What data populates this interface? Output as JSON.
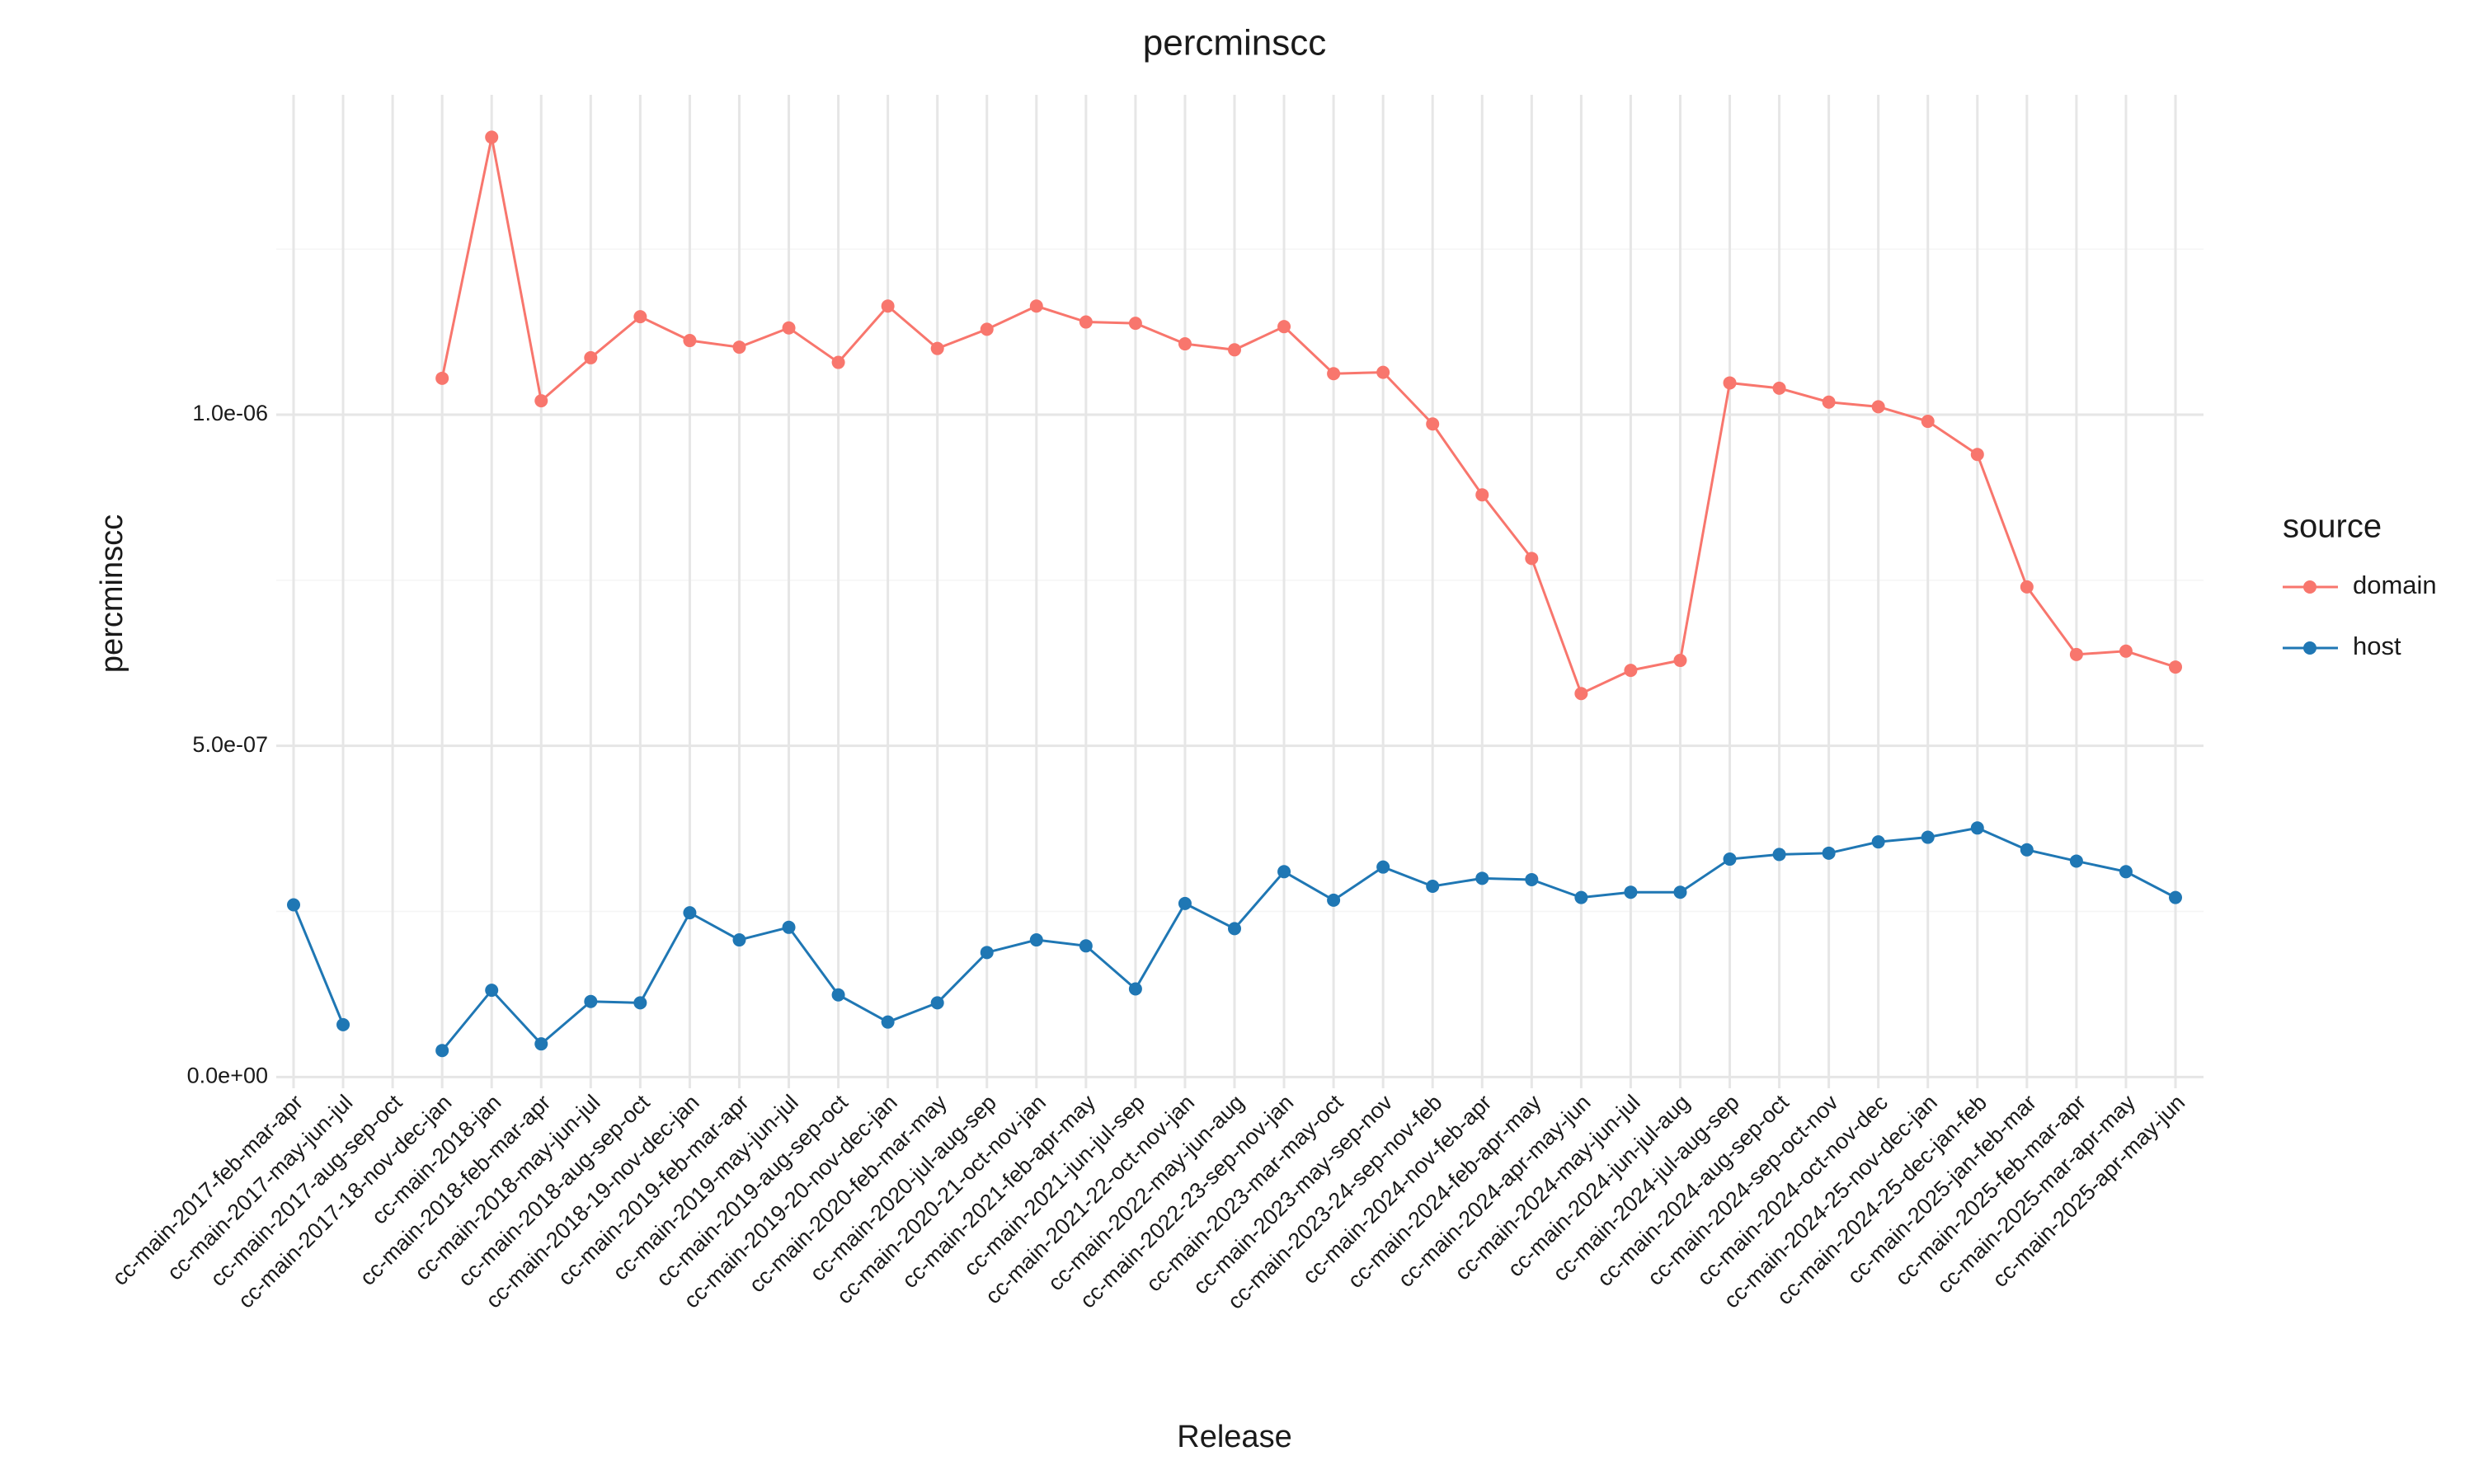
{
  "chart_data": {
    "type": "line",
    "title": "percminscc",
    "x_label": "Release",
    "y_label": "percminscc",
    "categories": [
      "cc-main-2017-feb-mar-apr",
      "cc-main-2017-may-jun-jul",
      "cc-main-2017-aug-sep-oct",
      "cc-main-2017-18-nov-dec-jan",
      "cc-main-2018-jan",
      "cc-main-2018-feb-mar-apr",
      "cc-main-2018-may-jun-jul",
      "cc-main-2018-aug-sep-oct",
      "cc-main-2018-19-nov-dec-jan",
      "cc-main-2019-feb-mar-apr",
      "cc-main-2019-may-jun-jul",
      "cc-main-2019-aug-sep-oct",
      "cc-main-2019-20-nov-dec-jan",
      "cc-main-2020-feb-mar-may",
      "cc-main-2020-jul-aug-sep",
      "cc-main-2020-21-oct-nov-jan",
      "cc-main-2021-feb-apr-may",
      "cc-main-2021-jun-jul-sep",
      "cc-main-2021-22-oct-nov-jan",
      "cc-main-2022-may-jun-aug",
      "cc-main-2022-23-sep-nov-jan",
      "cc-main-2023-mar-may-oct",
      "cc-main-2023-may-sep-nov",
      "cc-main-2023-24-sep-nov-feb",
      "cc-main-2024-nov-feb-apr",
      "cc-main-2024-feb-apr-may",
      "cc-main-2024-apr-may-jun",
      "cc-main-2024-may-jun-jul",
      "cc-main-2024-jun-jul-aug",
      "cc-main-2024-jul-aug-sep",
      "cc-main-2024-aug-sep-oct",
      "cc-main-2024-sep-oct-nov",
      "cc-main-2024-oct-nov-dec",
      "cc-main-2024-25-nov-dec-jan",
      "cc-main-2024-25-dec-jan-feb",
      "cc-main-2025-jan-feb-mar",
      "cc-main-2025-feb-mar-apr",
      "cc-main-2025-mar-apr-may",
      "cc-main-2025-apr-may-jun"
    ],
    "legend_title": "source",
    "grid": true,
    "ylim": [
      -1.7e-08,
      1.483e-06
    ],
    "yticks": [
      {
        "value": 0,
        "label": "0.0e+00"
      },
      {
        "value": 5e-07,
        "label": "5.0e-07"
      },
      {
        "value": 1e-06,
        "label": "1.0e-06"
      }
    ],
    "minor_yticks": [
      2.5e-07,
      7.5e-07,
      1.25e-06
    ],
    "series": [
      {
        "name": "domain",
        "color": "#F8766D",
        "values": [
          null,
          null,
          null,
          1.055e-06,
          1.419e-06,
          1.021e-06,
          1.086e-06,
          1.148e-06,
          1.112e-06,
          1.102e-06,
          1.131e-06,
          1.079e-06,
          1.164e-06,
          1.1e-06,
          1.129e-06,
          1.164e-06,
          1.14e-06,
          1.138e-06,
          1.107e-06,
          1.098e-06,
          1.133e-06,
          1.062e-06,
          1.064e-06,
          9.86e-07,
          8.79e-07,
          7.83e-07,
          5.79e-07,
          6.14e-07,
          6.29e-07,
          1.048e-06,
          1.04e-06,
          1.019e-06,
          1.012e-06,
          9.9e-07,
          9.4e-07,
          7.4e-07,
          6.38e-07,
          6.43e-07,
          6.19e-07
        ]
      },
      {
        "name": "host",
        "color": "#1F77B4",
        "values": [
          2.6e-07,
          7.9e-08,
          null,
          4e-08,
          1.31e-07,
          5e-08,
          1.14e-07,
          1.12e-07,
          2.48e-07,
          2.07e-07,
          2.26e-07,
          1.24e-07,
          8.3e-08,
          1.12e-07,
          1.88e-07,
          2.07e-07,
          1.98e-07,
          1.33e-07,
          2.62e-07,
          2.24e-07,
          3.1e-07,
          2.67e-07,
          3.17e-07,
          2.88e-07,
          3e-07,
          2.98e-07,
          2.71e-07,
          2.79e-07,
          2.79e-07,
          3.29e-07,
          3.36e-07,
          3.38e-07,
          3.55e-07,
          3.62e-07,
          3.76e-07,
          3.43e-07,
          3.26e-07,
          3.1e-07,
          2.71e-07
        ]
      }
    ]
  }
}
